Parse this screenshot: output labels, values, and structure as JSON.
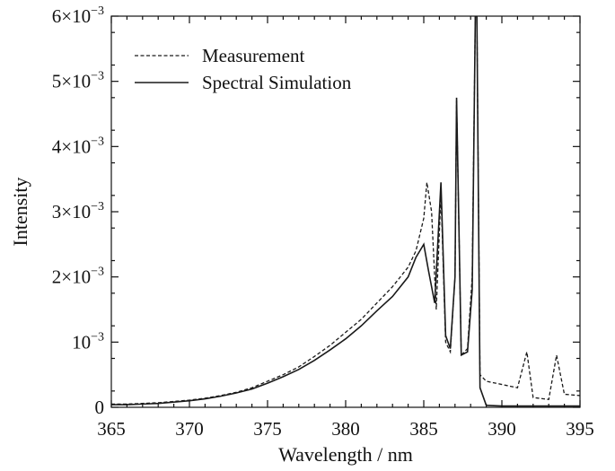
{
  "chart_data": {
    "type": "line",
    "xlabel": "Wavelength / nm",
    "ylabel": "Intensity",
    "xlim": [
      365,
      395
    ],
    "ylim": [
      0,
      0.006
    ],
    "x_ticks": [
      365,
      370,
      375,
      380,
      385,
      390,
      395
    ],
    "x_tick_labels": [
      "365",
      "370",
      "375",
      "380",
      "385",
      "390",
      "395"
    ],
    "y_ticks": [
      0,
      0.001,
      0.002,
      0.003,
      0.004,
      0.005,
      0.006
    ],
    "y_tick_labels": [
      {
        "mantissa": "0",
        "exp": ""
      },
      {
        "mantissa": "10",
        "exp": "−3"
      },
      {
        "mantissa": "2×10",
        "exp": "−3"
      },
      {
        "mantissa": "3×10",
        "exp": "−3"
      },
      {
        "mantissa": "4×10",
        "exp": "−3"
      },
      {
        "mantissa": "5×10",
        "exp": "−3"
      },
      {
        "mantissa": "6×10",
        "exp": "−3"
      }
    ],
    "grid": false,
    "legend": "top-left",
    "series": [
      {
        "name": "Measurement",
        "style": "dashed",
        "color": "#1a1a1a",
        "x": [
          365,
          366,
          367,
          368,
          369,
          370,
          371,
          372,
          373,
          374,
          375,
          376,
          377,
          378,
          379,
          380,
          381,
          382,
          383,
          384,
          384.5,
          385.0,
          385.2,
          385.5,
          385.8,
          386.1,
          386.4,
          386.7,
          387.0,
          387.1,
          387.4,
          387.8,
          388.1,
          388.3,
          388.4,
          388.6,
          389.0,
          390.0,
          391.0,
          391.6,
          392.0,
          393.0,
          393.5,
          394.0,
          395.0
        ],
        "y": [
          5e-05,
          5e-05,
          6e-05,
          7e-05,
          9e-05,
          0.00011,
          0.00014,
          0.00018,
          0.00023,
          0.0003,
          0.0004,
          0.0005,
          0.00062,
          0.00078,
          0.00095,
          0.00115,
          0.00135,
          0.0016,
          0.00185,
          0.00215,
          0.0024,
          0.0029,
          0.00345,
          0.003,
          0.0015,
          0.0033,
          0.001,
          0.00085,
          0.002,
          0.0047,
          0.0008,
          0.0009,
          0.002,
          0.006,
          0.006,
          0.0005,
          0.0004,
          0.00035,
          0.0003,
          0.00085,
          0.00015,
          0.00012,
          0.0008,
          0.0002,
          0.00018
        ]
      },
      {
        "name": "Spectral Simulation",
        "style": "solid",
        "color": "#1a1a1a",
        "x": [
          365,
          366,
          367,
          368,
          369,
          370,
          371,
          372,
          373,
          374,
          375,
          376,
          377,
          378,
          379,
          380,
          381,
          382,
          383,
          384,
          384.5,
          385.0,
          385.3,
          385.7,
          386.1,
          386.4,
          386.7,
          387.0,
          387.1,
          387.4,
          387.8,
          388.1,
          388.3,
          388.4,
          388.6,
          389.0,
          390.0,
          391.0,
          392.0,
          393.0,
          394.0,
          395.0
        ],
        "y": [
          4e-05,
          4e-05,
          5e-05,
          6e-05,
          8e-05,
          0.0001,
          0.00013,
          0.00017,
          0.00022,
          0.00028,
          0.00037,
          0.00047,
          0.00058,
          0.00072,
          0.00088,
          0.00105,
          0.00125,
          0.00148,
          0.0017,
          0.002,
          0.0023,
          0.0025,
          0.0021,
          0.0016,
          0.00345,
          0.0011,
          0.0009,
          0.002,
          0.00475,
          0.0008,
          0.00085,
          0.0018,
          0.006,
          0.006,
          0.0003,
          3e-05,
          2e-05,
          2e-05,
          2e-05,
          2e-05,
          2e-05,
          2e-05
        ]
      }
    ]
  }
}
